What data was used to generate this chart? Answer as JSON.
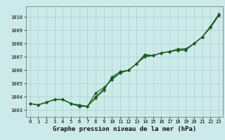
{
  "xlabel": "Graphe pression niveau de la mer (hPa)",
  "hours": [
    0,
    1,
    2,
    3,
    4,
    5,
    6,
    7,
    8,
    9,
    10,
    11,
    12,
    13,
    14,
    15,
    16,
    17,
    18,
    19,
    20,
    21,
    22,
    23
  ],
  "series1": [
    1003.5,
    1003.4,
    1003.6,
    1003.8,
    1003.8,
    1003.5,
    1003.4,
    1003.3,
    1003.9,
    1004.5,
    1005.5,
    1005.9,
    1006.0,
    1006.5,
    1007.2,
    1007.1,
    1007.3,
    1007.4,
    1007.6,
    1007.6,
    1008.0,
    1008.5,
    1009.3,
    1010.2
  ],
  "series2": [
    1003.5,
    1003.4,
    1003.6,
    1003.8,
    1003.8,
    1003.5,
    1003.3,
    1003.3,
    1004.0,
    1004.6,
    1005.4,
    1005.8,
    1006.0,
    1006.5,
    1007.0,
    1007.1,
    1007.3,
    1007.4,
    1007.5,
    1007.5,
    1008.0,
    1008.5,
    1009.2,
    1010.1
  ],
  "series3": [
    1003.5,
    1003.4,
    1003.6,
    1003.8,
    1003.8,
    1003.5,
    1003.3,
    1003.3,
    1004.3,
    1004.7,
    1005.3,
    1005.8,
    1006.0,
    1006.5,
    1007.1,
    1007.1,
    1007.3,
    1007.4,
    1007.5,
    1007.6,
    1008.0,
    1008.5,
    1009.2,
    1010.1
  ],
  "line_color": "#1a5c1a",
  "bg_color": "#cceaea",
  "grid_color": "#aacece",
  "ylim_min": 1002.5,
  "ylim_max": 1010.8,
  "yticks": [
    1003,
    1004,
    1005,
    1006,
    1007,
    1008,
    1009,
    1010
  ],
  "marker": "D",
  "markersize": 2.0,
  "linewidth": 0.8,
  "tick_fontsize": 5.0,
  "xlabel_fontsize": 6.5
}
